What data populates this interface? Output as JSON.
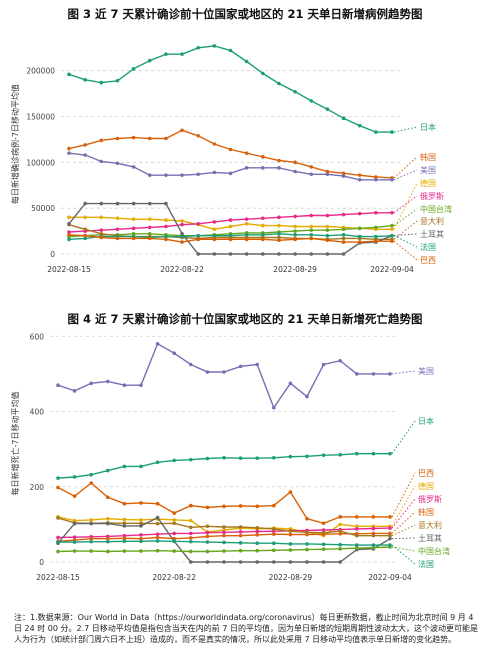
{
  "chart_data": [
    {
      "type": "line",
      "title": "图 3  近 7 天累计确诊前十位国家或地区的 21 天单日新增病例趋势图",
      "ylabel": "每日新增确诊病例-7日移动平均值",
      "xlabel": "",
      "x": [
        "2022-08-15",
        "2022-08-16",
        "2022-08-17",
        "2022-08-18",
        "2022-08-19",
        "2022-08-20",
        "2022-08-21",
        "2022-08-22",
        "2022-08-23",
        "2022-08-24",
        "2022-08-25",
        "2022-08-26",
        "2022-08-27",
        "2022-08-28",
        "2022-08-29",
        "2022-08-30",
        "2022-08-31",
        "2022-09-01",
        "2022-09-02",
        "2022-09-03",
        "2022-09-04"
      ],
      "xticks": [
        "2022-08-15",
        "2022-08-22",
        "2022-08-29",
        "2022-09-04"
      ],
      "yticks": [
        0,
        50000,
        100000,
        150000,
        200000
      ],
      "ylim": [
        0,
        240000
      ],
      "grid": true,
      "series": [
        {
          "name": "日本",
          "color": "#1a9e78",
          "values": [
            196000,
            190000,
            187000,
            189000,
            202000,
            211000,
            218000,
            218000,
            225000,
            227000,
            222000,
            210000,
            197000,
            186000,
            177000,
            167000,
            158000,
            148000,
            140000,
            133000,
            133000
          ]
        },
        {
          "name": "韩国",
          "color": "#d9620e",
          "values": [
            115000,
            119000,
            124000,
            126000,
            127000,
            126000,
            126000,
            135000,
            129000,
            120000,
            114000,
            110000,
            106000,
            102000,
            100000,
            95000,
            90000,
            88000,
            86000,
            84000,
            83000
          ]
        },
        {
          "name": "美国",
          "color": "#7570b3",
          "values": [
            110000,
            108000,
            101000,
            99000,
            95000,
            86000,
            86000,
            86000,
            87000,
            89000,
            88000,
            94000,
            94000,
            94000,
            90000,
            87000,
            87000,
            85000,
            81000,
            81000,
            81000
          ]
        },
        {
          "name": "德国",
          "color": "#e6ab02",
          "values": [
            40000,
            40000,
            40000,
            39000,
            38000,
            38000,
            37000,
            36000,
            32000,
            27000,
            30000,
            33000,
            31000,
            31000,
            30000,
            30000,
            30000,
            29000,
            28000,
            27000,
            27000
          ]
        },
        {
          "name": "俄罗斯",
          "color": "#e7298a",
          "values": [
            24000,
            25000,
            26000,
            27000,
            28000,
            29000,
            30000,
            32000,
            33000,
            35000,
            37000,
            38000,
            39000,
            40000,
            41000,
            42000,
            42000,
            43000,
            44000,
            45000,
            45000
          ]
        },
        {
          "name": "中国台湾",
          "color": "#66a61e",
          "values": [
            19000,
            20000,
            21000,
            21000,
            22000,
            22000,
            21000,
            20000,
            20000,
            21000,
            22000,
            23000,
            23000,
            24000,
            25000,
            26000,
            26000,
            27000,
            28000,
            29000,
            31000
          ]
        },
        {
          "name": "意大利",
          "color": "#a6761d",
          "values": [
            32000,
            27000,
            22000,
            20000,
            19000,
            19000,
            19000,
            18000,
            17000,
            18000,
            18000,
            18000,
            18000,
            18000,
            17000,
            17000,
            16000,
            17000,
            17000,
            16000,
            16000
          ]
        },
        {
          "name": "土耳其",
          "color": "#666666",
          "values": [
            33000,
            55000,
            55000,
            55000,
            55000,
            55000,
            55000,
            22000,
            0,
            0,
            0,
            0,
            0,
            0,
            0,
            0,
            0,
            0,
            12000,
            13000,
            20000
          ]
        },
        {
          "name": "法国",
          "color": "#1b9e77",
          "values": [
            16000,
            17000,
            19000,
            19000,
            19000,
            18000,
            19000,
            19000,
            20000,
            20000,
            20000,
            21000,
            21000,
            22000,
            21000,
            21000,
            20000,
            21000,
            19000,
            19000,
            20000
          ]
        },
        {
          "name": "巴西",
          "color": "#d95f02",
          "values": [
            21000,
            20000,
            18000,
            17000,
            17000,
            17000,
            16000,
            13000,
            16000,
            16000,
            16000,
            16000,
            16000,
            15000,
            16000,
            17000,
            15000,
            13000,
            13000,
            14000,
            14000
          ]
        }
      ],
      "label_order": [
        "韩国",
        "美国",
        "德国",
        "俄罗斯",
        "中国台湾",
        "意大利",
        "土耳其",
        "法国",
        "巴西"
      ]
    },
    {
      "type": "line",
      "title": "图 4  近 7 天累计确诊前十位国家或地区的 21 天单日新增死亡趋势图",
      "ylabel": "每日新增死亡-7日移动平均值",
      "xlabel": "",
      "x": [
        "2022-08-15",
        "2022-08-16",
        "2022-08-17",
        "2022-08-18",
        "2022-08-19",
        "2022-08-20",
        "2022-08-21",
        "2022-08-22",
        "2022-08-23",
        "2022-08-24",
        "2022-08-25",
        "2022-08-26",
        "2022-08-27",
        "2022-08-28",
        "2022-08-29",
        "2022-08-30",
        "2022-08-31",
        "2022-09-01",
        "2022-09-02",
        "2022-09-03",
        "2022-09-04"
      ],
      "xticks": [
        "2022-08-15",
        "2022-08-22",
        "2022-08-29",
        "2022-09-04"
      ],
      "yticks": [
        0,
        200,
        400,
        600
      ],
      "ylim": [
        0,
        630
      ],
      "grid": true,
      "series": [
        {
          "name": "美国",
          "color": "#7570b3",
          "values": [
            470,
            455,
            475,
            480,
            470,
            470,
            580,
            555,
            525,
            505,
            505,
            520,
            525,
            410,
            475,
            440,
            525,
            535,
            500,
            500,
            500
          ]
        },
        {
          "name": "日本",
          "color": "#1b9e77",
          "values": [
            223,
            226,
            232,
            243,
            254,
            254,
            265,
            270,
            272,
            275,
            277,
            276,
            276,
            277,
            280,
            281,
            284,
            285,
            288,
            288,
            288
          ]
        },
        {
          "name": "巴西",
          "color": "#d95f02",
          "values": [
            198,
            175,
            210,
            172,
            155,
            157,
            155,
            130,
            150,
            145,
            148,
            149,
            148,
            150,
            186,
            115,
            103,
            120,
            120,
            120,
            120
          ]
        },
        {
          "name": "德国",
          "color": "#e6ab02",
          "values": [
            120,
            110,
            112,
            115,
            113,
            112,
            114,
            112,
            110,
            80,
            85,
            90,
            88,
            90,
            88,
            80,
            70,
            100,
            95,
            95,
            95
          ]
        },
        {
          "name": "俄罗斯",
          "color": "#e7298a",
          "values": [
            65,
            66,
            67,
            68,
            70,
            72,
            74,
            76,
            76,
            78,
            79,
            80,
            81,
            82,
            83,
            84,
            85,
            86,
            88,
            89,
            90
          ]
        },
        {
          "name": "韩国",
          "color": "#d9620e",
          "values": [
            55,
            58,
            62,
            62,
            63,
            62,
            65,
            62,
            64,
            68,
            70,
            70,
            72,
            74,
            73,
            73,
            74,
            75,
            75,
            76,
            76
          ]
        },
        {
          "name": "意大利",
          "color": "#a6761d",
          "values": [
            117,
            104,
            103,
            104,
            103,
            103,
            102,
            103,
            92,
            95,
            93,
            93,
            91,
            88,
            82,
            79,
            78,
            82,
            70,
            70,
            70
          ]
        },
        {
          "name": "土耳其",
          "color": "#666666",
          "values": [
            50,
            102,
            102,
            102,
            96,
            96,
            118,
            55,
            0,
            0,
            0,
            0,
            0,
            0,
            0,
            0,
            0,
            0,
            33,
            35,
            62
          ]
        },
        {
          "name": "中国台湾",
          "color": "#66a61e",
          "values": [
            28,
            29,
            29,
            28,
            29,
            29,
            30,
            29,
            28,
            28,
            29,
            30,
            30,
            31,
            32,
            33,
            34,
            35,
            37,
            38,
            40
          ]
        },
        {
          "name": "法国",
          "color": "#1b9e77",
          "values": [
            53,
            53,
            54,
            54,
            55,
            55,
            56,
            55,
            54,
            53,
            52,
            51,
            50,
            50,
            48,
            48,
            47,
            46,
            45,
            45,
            45
          ]
        }
      ],
      "label_order": [
        "巴西",
        "德国",
        "俄罗斯",
        "韩国",
        "意大利",
        "土耳其",
        "中国台湾",
        "法国"
      ]
    }
  ],
  "footnote": "注：1.数据来源：Our World in Data（https://ourworldindata.org/coronavirus）每日更新数据，截止时间为北京时间 9 月 4 日 24 时 00 分。2.7 日移动平均值是指包含当天在内的前 7 日的平均值，因为单日新增的短期周期性波动太大，这个波动更可能是人为行为（如统计部门周六日不上班）造成的，而不是真实的情况，所以此处采用 7 日移动平均值表示单日新增的变化趋势。"
}
